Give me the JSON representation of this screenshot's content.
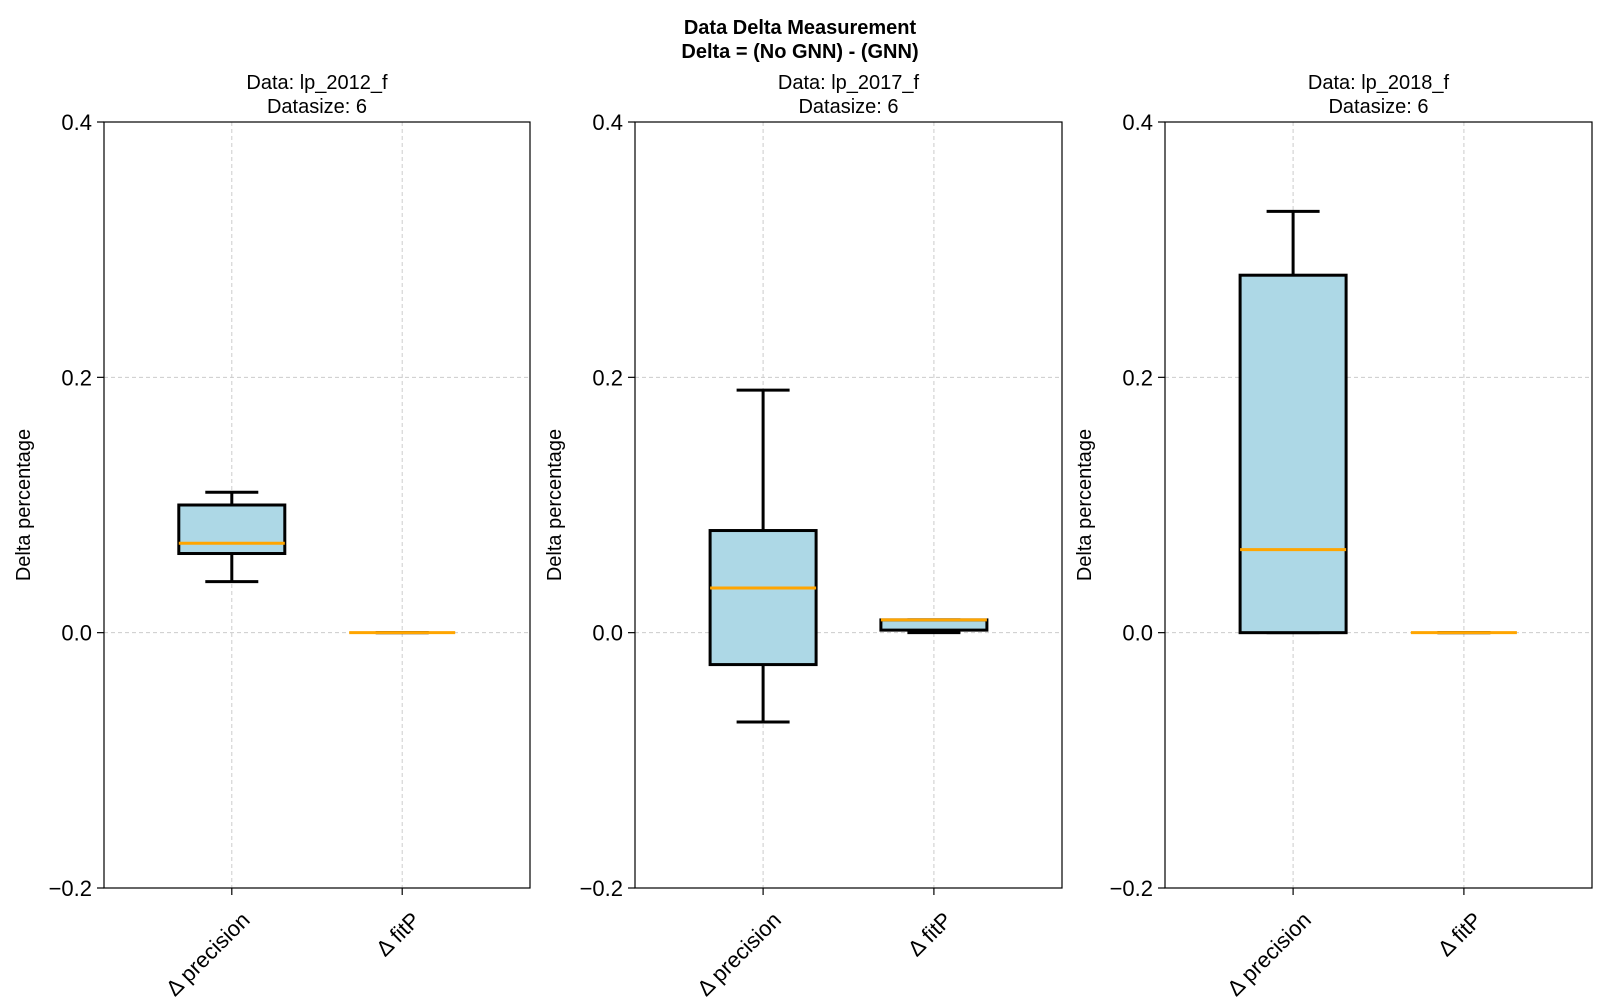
{
  "figure": {
    "title_line1": "Data Delta Measurement",
    "title_line2": "Delta = (No GNN) - (GNN)"
  },
  "colors": {
    "box_fill": "#add8e6",
    "median": "#ffa500",
    "grid": "#cccccc",
    "line": "#000000"
  },
  "chart_data": [
    {
      "type": "box",
      "title_line1": "Data: lp_2012_f",
      "title_line2": "Datasize: 6",
      "ylabel": "Delta percentage",
      "ylim": [
        -0.2,
        0.4
      ],
      "yticks": [
        -0.2,
        0.0,
        0.2,
        0.4
      ],
      "ytick_labels": [
        "−0.2",
        "0.0",
        "0.2",
        "0.4"
      ],
      "grid": true,
      "categories": [
        "Δ precision",
        "Δ fitP"
      ],
      "boxes": [
        {
          "whisker_low": 0.04,
          "q1": 0.062,
          "median": 0.07,
          "q3": 0.1,
          "whisker_high": 0.11
        },
        {
          "whisker_low": 0.0,
          "q1": 0.0,
          "median": 0.0,
          "q3": 0.0,
          "whisker_high": 0.0
        }
      ]
    },
    {
      "type": "box",
      "title_line1": "Data: lp_2017_f",
      "title_line2": "Datasize: 6",
      "ylabel": "Delta percentage",
      "ylim": [
        -0.2,
        0.4
      ],
      "yticks": [
        -0.2,
        0.0,
        0.2,
        0.4
      ],
      "ytick_labels": [
        "−0.2",
        "0.0",
        "0.2",
        "0.4"
      ],
      "grid": true,
      "categories": [
        "Δ precision",
        "Δ fitP"
      ],
      "boxes": [
        {
          "whisker_low": -0.07,
          "q1": -0.025,
          "median": 0.035,
          "q3": 0.08,
          "whisker_high": 0.19
        },
        {
          "whisker_low": 0.0,
          "q1": 0.002,
          "median": 0.01,
          "q3": 0.01,
          "whisker_high": 0.01
        }
      ]
    },
    {
      "type": "box",
      "title_line1": "Data: lp_2018_f",
      "title_line2": "Datasize: 6",
      "ylabel": "Delta percentage",
      "ylim": [
        -0.2,
        0.4
      ],
      "yticks": [
        -0.2,
        0.0,
        0.2,
        0.4
      ],
      "ytick_labels": [
        "−0.2",
        "0.0",
        "0.2",
        "0.4"
      ],
      "grid": true,
      "categories": [
        "Δ precision",
        "Δ fitP"
      ],
      "boxes": [
        {
          "whisker_low": 0.0,
          "q1": 0.0,
          "median": 0.065,
          "q3": 0.28,
          "whisker_high": 0.33
        },
        {
          "whisker_low": 0.0,
          "q1": 0.0,
          "median": 0.0,
          "q3": 0.0,
          "whisker_high": 0.0
        }
      ]
    }
  ]
}
